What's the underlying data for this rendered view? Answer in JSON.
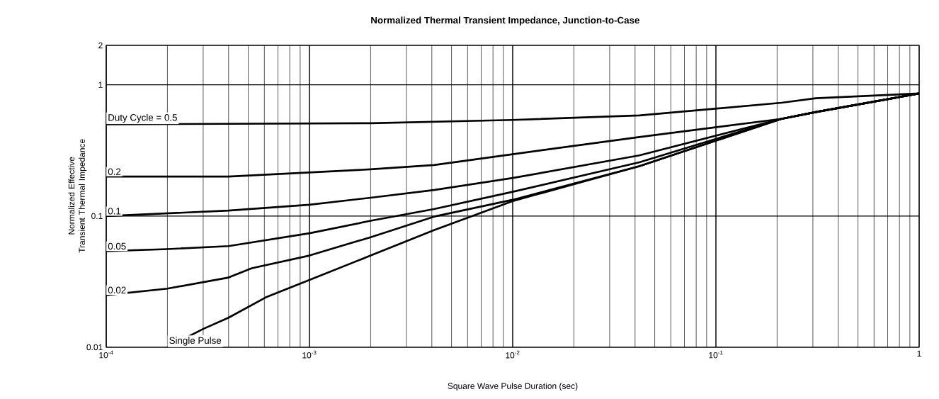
{
  "chart_data": {
    "type": "line",
    "title": "Normalized Thermal Transient Impedance, Junction-to-Case",
    "xlabel": "Square Wave Pulse Duration (sec)",
    "ylabel": "Normalized Effective Transient Thermal Impedance",
    "log": "xy",
    "grid": true,
    "xlim": [
      0.0001,
      1
    ],
    "ylim": [
      0.01,
      2
    ],
    "xticks": [
      {
        "value": 0.0001,
        "label": "10$^{-4}$"
      },
      {
        "value": 0.001,
        "label": "10$^{-3}$"
      },
      {
        "value": 0.01,
        "label": "10$^{-2}$"
      },
      {
        "value": 0.1,
        "label": "10$^{-1}$"
      },
      1
    ],
    "yticks": [
      0.01,
      0.1,
      1,
      2
    ],
    "series": [
      {
        "name": "Duty Cycle = 0.5",
        "color": "#000000",
        "x": [
          0.0001,
          0.002,
          0.01,
          0.042,
          0.21,
          0.31,
          1
        ],
        "values": [
          0.5,
          0.51,
          0.54,
          0.585,
          0.73,
          0.79,
          0.86
        ]
      },
      {
        "name": "0.2",
        "color": "#000000",
        "x": [
          0.0001,
          0.0004,
          0.002,
          0.0041,
          0.01,
          0.042,
          0.21,
          0.31,
          1
        ],
        "values": [
          0.2,
          0.2,
          0.227,
          0.245,
          0.296,
          0.4,
          0.55,
          0.62,
          0.86
        ]
      },
      {
        "name": "0.1",
        "color": "#000000",
        "x": [
          0.0001,
          0.0004,
          0.001,
          0.002,
          0.0041,
          0.01,
          0.042,
          0.21,
          0.31,
          1
        ],
        "values": [
          0.1,
          0.11,
          0.122,
          0.138,
          0.158,
          0.195,
          0.29,
          0.55,
          0.62,
          0.86
        ]
      },
      {
        "name": "0.05",
        "color": "#000000",
        "x": [
          0.0001,
          0.0002,
          0.0004,
          0.001,
          0.002,
          0.0041,
          0.01,
          0.042,
          0.21,
          0.31,
          1
        ],
        "values": [
          0.054,
          0.056,
          0.059,
          0.074,
          0.092,
          0.113,
          0.153,
          0.257,
          0.55,
          0.62,
          0.86
        ]
      },
      {
        "name": "0.02",
        "color": "#000000",
        "x": [
          0.0001,
          0.0002,
          0.0004,
          0.00052,
          0.001,
          0.002,
          0.0041,
          0.01,
          0.042,
          0.21,
          0.31,
          1
        ],
        "values": [
          0.025,
          0.028,
          0.034,
          0.04,
          0.05,
          0.069,
          0.099,
          0.133,
          0.24,
          0.55,
          0.62,
          0.86
        ]
      },
      {
        "name": "Single Pulse",
        "color": "#000000",
        "x": [
          0.0002,
          0.0003,
          0.0004,
          0.00061,
          0.001,
          0.002,
          0.0041,
          0.01,
          0.042,
          0.21,
          0.31,
          1
        ],
        "values": [
          0.01,
          0.0138,
          0.0168,
          0.024,
          0.0326,
          0.05,
          0.078,
          0.13,
          0.24,
          0.55,
          0.62,
          0.86
        ]
      }
    ]
  }
}
